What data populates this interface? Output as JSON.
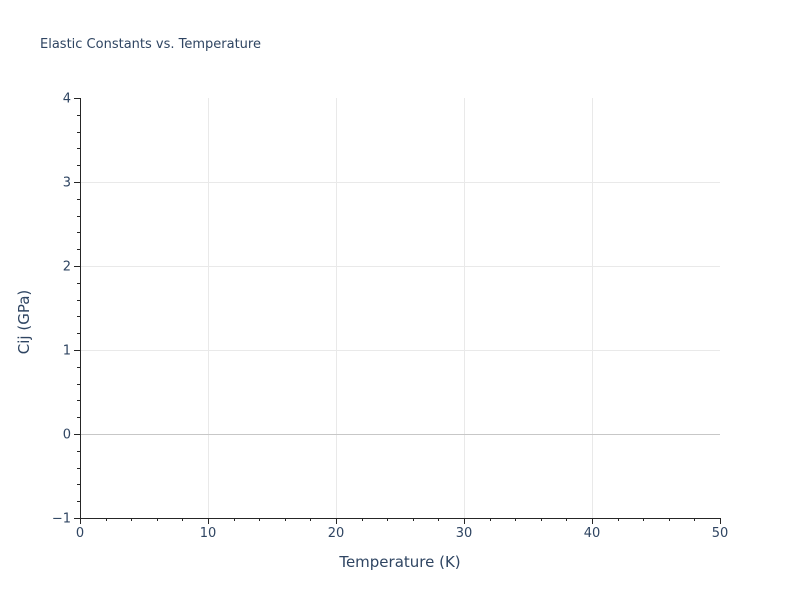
{
  "colors": {
    "background": "#ffffff",
    "text": "#2f4562",
    "axis": "#262626",
    "grid": "#e9e9e9",
    "zeroline": "#c7c7c7"
  },
  "chart_data": {
    "type": "line",
    "title": "Elastic Constants vs. Temperature",
    "xlabel": "Temperature (K)",
    "ylabel": "Cij (GPa)",
    "xlim": [
      0,
      50
    ],
    "ylim": [
      -1,
      4
    ],
    "xticks": [
      0,
      10,
      20,
      30,
      40,
      50
    ],
    "xtick_labels": [
      "0",
      "10",
      "20",
      "30",
      "40",
      "50"
    ],
    "yticks": [
      -1,
      0,
      1,
      2,
      3,
      4
    ],
    "ytick_labels": [
      "−1",
      "0",
      "1",
      "2",
      "3",
      "4"
    ],
    "x_minor_step": 2,
    "y_minor_step": 0.2,
    "grid": true,
    "zeroline": true,
    "legend": false,
    "series": []
  }
}
